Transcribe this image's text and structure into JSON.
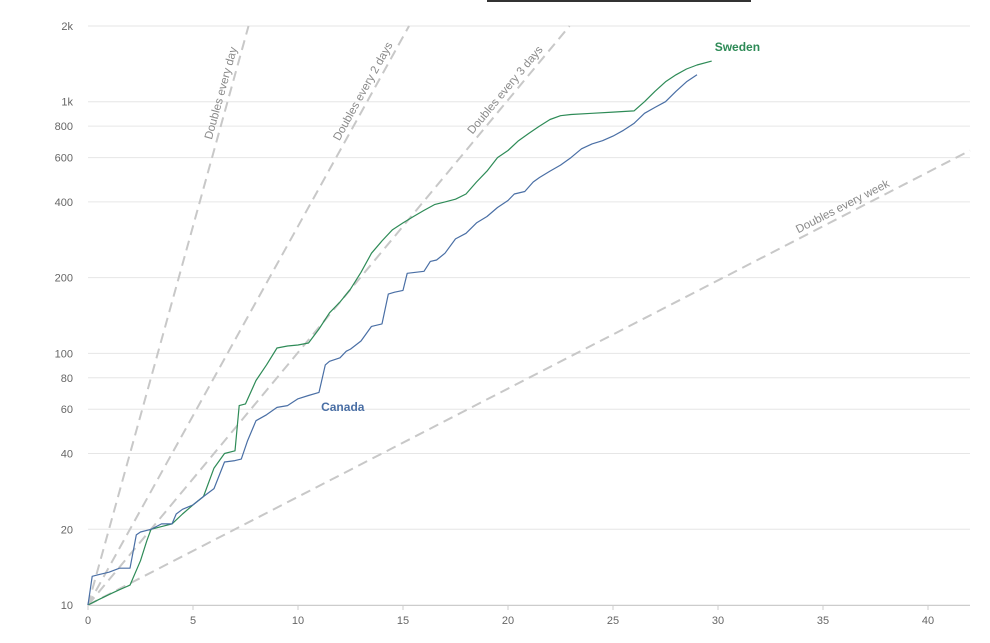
{
  "chart_data": {
    "type": "line",
    "title": "",
    "xlabel": "",
    "ylabel": "",
    "y_scale": "log",
    "xlim": [
      0,
      42
    ],
    "ylim": [
      10,
      2000
    ],
    "x_ticks": [
      0,
      5,
      10,
      15,
      20,
      25,
      30,
      35,
      40
    ],
    "x_tick_labels": [
      "0",
      "5",
      "10",
      "15",
      "20",
      "25",
      "30",
      "35",
      "40"
    ],
    "y_ticks": [
      10,
      20,
      40,
      60,
      80,
      100,
      200,
      400,
      600,
      800,
      1000,
      2000
    ],
    "y_tick_labels": [
      "10",
      "20",
      "40",
      "60",
      "80",
      "100",
      "200",
      "400",
      "600",
      "800",
      "1k",
      "2k"
    ],
    "grid": true,
    "reference_lines": [
      {
        "name": "Doubles every day",
        "doubling_days": 1
      },
      {
        "name": "Doubles every 2 days",
        "doubling_days": 2
      },
      {
        "name": "Doubles every 3 days",
        "doubling_days": 3
      },
      {
        "name": "Doubles every week",
        "doubling_days": 7
      }
    ],
    "series": [
      {
        "name": "Sweden",
        "color": "#2e8b57",
        "points": [
          [
            0,
            10
          ],
          [
            0.5,
            10.5
          ],
          [
            1,
            11
          ],
          [
            1.5,
            11.5
          ],
          [
            2,
            12
          ],
          [
            2.5,
            15
          ],
          [
            2.8,
            18
          ],
          [
            3,
            20
          ],
          [
            3.5,
            20.5
          ],
          [
            4,
            21
          ],
          [
            4.5,
            23
          ],
          [
            5,
            25
          ],
          [
            5.5,
            27
          ],
          [
            6,
            35
          ],
          [
            6.5,
            40
          ],
          [
            7,
            41
          ],
          [
            7.2,
            62
          ],
          [
            7.5,
            63
          ],
          [
            8,
            78
          ],
          [
            8.5,
            90
          ],
          [
            9,
            105
          ],
          [
            9.5,
            107
          ],
          [
            10,
            108
          ],
          [
            10.5,
            110
          ],
          [
            11,
            125
          ],
          [
            11.5,
            145
          ],
          [
            12,
            160
          ],
          [
            12.5,
            180
          ],
          [
            13,
            210
          ],
          [
            13.5,
            250
          ],
          [
            14,
            280
          ],
          [
            14.5,
            310
          ],
          [
            15,
            330
          ],
          [
            15.5,
            350
          ],
          [
            16,
            370
          ],
          [
            16.5,
            390
          ],
          [
            17,
            400
          ],
          [
            17.5,
            410
          ],
          [
            18,
            430
          ],
          [
            18.5,
            480
          ],
          [
            19,
            530
          ],
          [
            19.5,
            600
          ],
          [
            20,
            640
          ],
          [
            20.5,
            700
          ],
          [
            21,
            750
          ],
          [
            21.5,
            800
          ],
          [
            22,
            850
          ],
          [
            22.5,
            880
          ],
          [
            23,
            890
          ],
          [
            24,
            900
          ],
          [
            25,
            910
          ],
          [
            26,
            920
          ],
          [
            26.5,
            1000
          ],
          [
            27,
            1100
          ],
          [
            27.5,
            1200
          ],
          [
            28,
            1280
          ],
          [
            28.5,
            1350
          ],
          [
            29,
            1400
          ],
          [
            29.7,
            1450
          ]
        ],
        "label_at": "end-top"
      },
      {
        "name": "Canada",
        "color": "#4a6fa5",
        "points": [
          [
            0,
            10
          ],
          [
            0.2,
            13
          ],
          [
            0.5,
            13.2
          ],
          [
            1,
            13.5
          ],
          [
            1.5,
            14
          ],
          [
            2,
            14
          ],
          [
            2.3,
            19
          ],
          [
            2.5,
            19.5
          ],
          [
            3,
            20
          ],
          [
            3.5,
            21
          ],
          [
            4,
            21
          ],
          [
            4.2,
            23
          ],
          [
            4.5,
            24
          ],
          [
            5,
            25
          ],
          [
            5.5,
            27
          ],
          [
            6,
            29
          ],
          [
            6.5,
            37
          ],
          [
            7,
            37.5
          ],
          [
            7.3,
            38
          ],
          [
            7.6,
            45
          ],
          [
            8,
            54
          ],
          [
            8.5,
            57
          ],
          [
            9,
            61
          ],
          [
            9.5,
            62
          ],
          [
            10,
            66
          ],
          [
            10.5,
            68
          ],
          [
            11,
            70
          ],
          [
            11.3,
            90
          ],
          [
            11.5,
            93
          ],
          [
            12,
            96
          ],
          [
            12.3,
            102
          ],
          [
            12.5,
            104
          ],
          [
            13,
            112
          ],
          [
            13.5,
            128
          ],
          [
            14,
            131
          ],
          [
            14.3,
            172
          ],
          [
            14.6,
            175
          ],
          [
            15,
            178
          ],
          [
            15.2,
            208
          ],
          [
            16,
            212
          ],
          [
            16.3,
            232
          ],
          [
            16.6,
            235
          ],
          [
            17,
            250
          ],
          [
            17.5,
            285
          ],
          [
            18,
            300
          ],
          [
            18.5,
            330
          ],
          [
            19,
            350
          ],
          [
            19.5,
            380
          ],
          [
            20,
            405
          ],
          [
            20.3,
            430
          ],
          [
            20.8,
            440
          ],
          [
            21.2,
            480
          ],
          [
            21.5,
            500
          ],
          [
            22,
            530
          ],
          [
            22.5,
            560
          ],
          [
            23,
            600
          ],
          [
            23.5,
            650
          ],
          [
            24,
            680
          ],
          [
            24.5,
            700
          ],
          [
            25,
            730
          ],
          [
            25.5,
            770
          ],
          [
            26,
            820
          ],
          [
            26.5,
            900
          ],
          [
            27,
            950
          ],
          [
            27.5,
            1000
          ],
          [
            28,
            1100
          ],
          [
            28.5,
            1200
          ],
          [
            29,
            1280
          ]
        ],
        "label_at": "mid"
      }
    ]
  }
}
